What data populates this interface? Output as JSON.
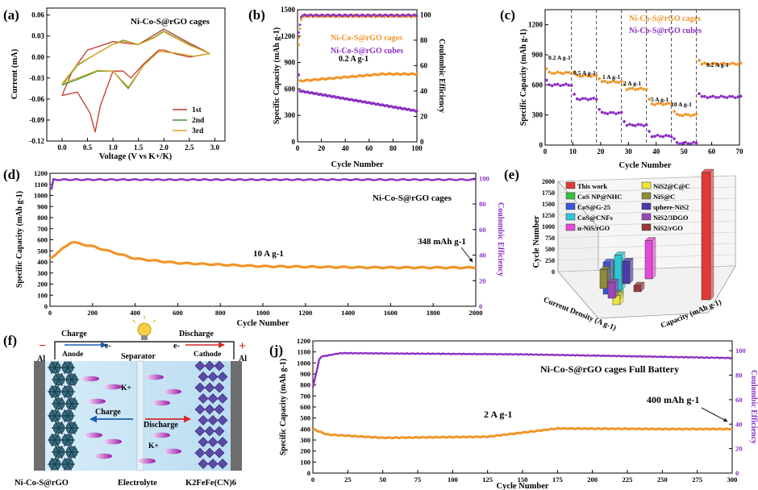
{
  "panels": {
    "a": {
      "label": "(a)",
      "xlabel": "Voltage (V vs K+/K)",
      "ylabel": "Current (mA)",
      "title": "Ni-Co-S@rGO cages"
    },
    "b": {
      "label": "(b)",
      "xlabel": "Cycle Number",
      "ylabel": "Specific Capacity (mAh g-1)",
      "y2label": "Coulombic Efficiency",
      "rate": "0.2 A g-1",
      "legend1": "Ni-Co-S@rGO cages",
      "legend2": "Ni-Co-S@rGO cubes"
    },
    "c": {
      "label": "(c)",
      "xlabel": "Cycle Number",
      "ylabel": "Specific Capacity (mAh g-1)",
      "legend1": "Ni-Co-S@rGO cages",
      "legend2": "Ni-Co-S@rGO cubes"
    },
    "d": {
      "label": "(d)",
      "xlabel": "Cycle Number",
      "ylabel": "Specific Capacity (mAh g-1)",
      "y2label": "Coulombic Efficiency",
      "title": "Ni-Co-S@rGO cages",
      "rate": "10 A g-1",
      "end_value": "348 mAh g-1"
    },
    "e": {
      "label": "(e)",
      "zlabel": "Cycle Number",
      "xlabel": "Current Density (A g-1)",
      "ylabel": "Capacity (mAh g-1)"
    },
    "f": {
      "label": "(f)"
    },
    "j": {
      "label": "(j)",
      "xlabel": "Cycle Number",
      "ylabel": "Specific Capacity (mAh g-1)",
      "y2label": "Coulombic Efficiency",
      "title": "Ni-Co-S@rGO cages Full Battery",
      "rate": "2 A g-1",
      "end_value": "400 mAh g-1"
    }
  },
  "chart_data": [
    {
      "id": "a",
      "type": "line",
      "title": "Ni-Co-S@rGO cages",
      "xlabel": "Voltage (V vs K+/K)",
      "ylabel": "Current (mA)",
      "xlim": [
        -0.3,
        3.2
      ],
      "ylim": [
        -0.12,
        0.07
      ],
      "xticks": [
        "0.0",
        "0.5",
        "1.0",
        "1.5",
        "2.0",
        "2.5",
        "3.0"
      ],
      "yticks": [
        "0.06",
        "0.03",
        "0.00",
        "-0.03",
        "-0.06",
        "-0.09",
        "-0.12"
      ],
      "series": [
        {
          "name": "1st",
          "color": "#c0392b",
          "x": [
            0.0,
            0.3,
            0.55,
            0.65,
            0.75,
            1.0,
            1.2,
            1.35,
            1.6,
            1.9,
            2.0,
            2.2,
            2.5,
            2.9,
            2.9,
            2.5,
            2.0,
            1.5,
            1.0,
            0.5,
            0.2,
            0.0
          ],
          "y": [
            -0.055,
            -0.05,
            -0.08,
            -0.107,
            -0.07,
            -0.02,
            -0.02,
            -0.03,
            -0.01,
            0.01,
            0.01,
            0.005,
            0.0,
            0.005,
            0.005,
            0.02,
            0.04,
            0.018,
            0.022,
            0.01,
            -0.02,
            -0.055
          ]
        },
        {
          "name": "2nd",
          "color": "#3a9a32",
          "x": [
            0.0,
            0.3,
            0.7,
            1.0,
            1.3,
            1.6,
            1.9,
            2.2,
            2.6,
            2.9,
            2.9,
            2.5,
            2.0,
            1.8,
            1.5,
            1.2,
            1.0,
            0.7,
            0.3,
            0.0
          ],
          "y": [
            -0.04,
            -0.032,
            -0.02,
            -0.02,
            -0.045,
            -0.012,
            0.008,
            0.006,
            0.001,
            0.005,
            0.005,
            0.018,
            0.037,
            0.028,
            0.018,
            0.024,
            0.018,
            0.006,
            -0.012,
            -0.04
          ]
        },
        {
          "name": "3rd",
          "color": "#e0a326",
          "x": [
            0.0,
            0.3,
            0.7,
            1.0,
            1.3,
            1.6,
            1.9,
            2.2,
            2.6,
            2.9,
            2.9,
            2.5,
            2.0,
            1.8,
            1.5,
            1.2,
            1.0,
            0.7,
            0.3,
            0.0
          ],
          "y": [
            -0.038,
            -0.03,
            -0.019,
            -0.02,
            -0.043,
            -0.012,
            0.008,
            0.006,
            0.001,
            0.005,
            0.005,
            0.017,
            0.036,
            0.027,
            0.018,
            0.023,
            0.018,
            0.006,
            -0.011,
            -0.038
          ]
        }
      ]
    },
    {
      "id": "b",
      "type": "scatter",
      "xlabel": "Cycle Number",
      "ylabel": "Specific Capacity (mAh g-1)",
      "y2label": "Coulombic Efficiency",
      "xlim": [
        0,
        100
      ],
      "ylim": [
        0,
        1500
      ],
      "y2lim": [
        0,
        104
      ],
      "xticks": [
        "0",
        "20",
        "40",
        "60",
        "80",
        "100"
      ],
      "yticks": [
        "0",
        "300",
        "600",
        "900",
        "1200",
        "1500"
      ],
      "y2ticks": [
        "0",
        "20",
        "40",
        "60",
        "80",
        "100"
      ],
      "annotation": "0.2 A g-1",
      "series": [
        {
          "name": "Ni-Co-S@rGO cages",
          "color": "#f0952a",
          "start": 690,
          "end": 770,
          "first": 1100
        },
        {
          "name": "Ni-Co-S@rGO cubes",
          "color": "#8a2fc4",
          "start": 580,
          "end": 350,
          "first": 760
        },
        {
          "name": "CE cages",
          "color": "#f0952a",
          "axis": "right",
          "value": 99
        },
        {
          "name": "CE cubes",
          "color": "#8a2fc4",
          "axis": "right",
          "value": 99.5
        }
      ]
    },
    {
      "id": "c",
      "type": "scatter",
      "xlabel": "Cycle Number",
      "ylabel": "Specific Capacity (mAh g-1)",
      "xlim": [
        0,
        70
      ],
      "ylim": [
        0,
        1350
      ],
      "xticks": [
        "0",
        "10",
        "20",
        "30",
        "40",
        "50",
        "60",
        "70"
      ],
      "yticks": [
        "0",
        "300",
        "600",
        "900",
        "1200"
      ],
      "rates": [
        "0.2 A g-1",
        "0.5 A g-1",
        "1 A g-1",
        "2 A g-1",
        "5 A g-1",
        "10 A g-1",
        "0.2 A g-1"
      ],
      "dividers": [
        9.5,
        18.5,
        27.5,
        36.5,
        45.5,
        54.5
      ],
      "series": [
        {
          "name": "Ni-Co-S@rGO cages",
          "color": "#f0952a",
          "segments": [
            [
              0,
              9,
              720
            ],
            [
              10,
              18,
              690
            ],
            [
              19,
              27,
              630
            ],
            [
              28,
              36,
              560
            ],
            [
              37,
              45,
              410
            ],
            [
              46,
              54,
              300
            ],
            [
              55,
              70,
              810
            ]
          ]
        },
        {
          "name": "Ni-Co-S@rGO cubes",
          "color": "#8a2fc4",
          "segments": [
            [
              0,
              9,
              600
            ],
            [
              10,
              18,
              460
            ],
            [
              19,
              27,
              320
            ],
            [
              28,
              36,
              200
            ],
            [
              37,
              45,
              90
            ],
            [
              46,
              54,
              20
            ],
            [
              55,
              70,
              480
            ]
          ]
        }
      ]
    },
    {
      "id": "d",
      "type": "scatter",
      "title": "Ni-Co-S@rGO cages",
      "xlabel": "Cycle Number",
      "ylabel": "Specific Capacity (mAh g-1)",
      "y2label": "Coulombic Efficiency",
      "xlim": [
        0,
        2000
      ],
      "ylim": [
        0,
        1200
      ],
      "y2lim": [
        0,
        104
      ],
      "xticks": [
        "0",
        "200",
        "400",
        "600",
        "800",
        "1000",
        "1200",
        "1400",
        "1600",
        "1800",
        "2000"
      ],
      "yticks": [
        "0",
        "100",
        "200",
        "300",
        "400",
        "500",
        "600",
        "700",
        "800",
        "900",
        "1000",
        "1100",
        "1200"
      ],
      "y2ticks": [
        "0",
        "20",
        "40",
        "60",
        "80",
        "100"
      ],
      "annotations": [
        "10 A g-1",
        "348 mAh g-1"
      ],
      "series": [
        {
          "name": "capacity",
          "color": "#f0952a",
          "points": [
            [
              0,
              430
            ],
            [
              100,
              580
            ],
            [
              200,
              540
            ],
            [
              400,
              430
            ],
            [
              600,
              390
            ],
            [
              1000,
              360
            ],
            [
              1500,
              350
            ],
            [
              2000,
              348
            ]
          ]
        },
        {
          "name": "CE",
          "color": "#8a2fc4",
          "axis": "right",
          "value": 99
        }
      ]
    },
    {
      "id": "e",
      "type": "bar",
      "title": "",
      "zlabel": "Cycle Number",
      "xlabel": "Current Density (A g-1)",
      "ylabel": "Capacity (mAh g-1)",
      "zticks": [
        "0",
        "250",
        "500",
        "750",
        "1000",
        "1250",
        "1500",
        "1750",
        "2000"
      ],
      "categories": [
        "This work",
        "CoS NP@NHC",
        "CoS@G-25",
        "CoS@CNFs",
        "α-NiS/rGO",
        "NiS2@C@C",
        "NiS@C",
        "sphere-NiS2",
        "NiS2/3DGO",
        "NiS2/rGO"
      ],
      "colors": [
        "#e03a36",
        "#38c23c",
        "#3a56d6",
        "#2fc6d6",
        "#e44ad8",
        "#ece63a",
        "#8e8a38",
        "#4c3aa8",
        "#9a47b6",
        "#963a3a"
      ],
      "values": [
        2000,
        600,
        500,
        550,
        600,
        150,
        300,
        350,
        250,
        100
      ]
    },
    {
      "id": "j",
      "type": "scatter",
      "title": "Ni-Co-S@rGO cages Full Battery",
      "xlabel": "Cycle Number",
      "ylabel": "Specific Capacity (mAh g-1)",
      "y2label": "Coulombic Efficiency",
      "xlim": [
        0,
        300
      ],
      "ylim": [
        0,
        1200
      ],
      "y2lim": [
        0,
        108
      ],
      "xticks": [
        "0",
        "25",
        "50",
        "75",
        "100",
        "125",
        "150",
        "175",
        "200",
        "225",
        "250",
        "275",
        "300"
      ],
      "yticks": [
        "0",
        "100",
        "200",
        "300",
        "400",
        "500",
        "600",
        "700",
        "800",
        "900",
        "1000",
        "1100",
        "1200"
      ],
      "y2ticks": [
        "0",
        "20",
        "40",
        "60",
        "80",
        "100"
      ],
      "annotations": [
        "2 A g-1",
        "400 mAh g-1"
      ],
      "series": [
        {
          "name": "capacity",
          "color": "#f0952a",
          "points": [
            [
              0,
              400
            ],
            [
              10,
              350
            ],
            [
              50,
              320
            ],
            [
              125,
              330
            ],
            [
              175,
              405
            ],
            [
              250,
              400
            ],
            [
              300,
              400
            ]
          ]
        },
        {
          "name": "CE",
          "color": "#8a2fc4",
          "axis": "right",
          "values": [
            [
              0,
              70
            ],
            [
              5,
              95
            ],
            [
              20,
              98
            ],
            [
              150,
              97
            ],
            [
              300,
              94
            ]
          ]
        }
      ]
    }
  ],
  "schematic": {
    "charge_top": "Charge",
    "discharge_top": "Discharge",
    "electron_left": "e-",
    "electron_right": "e-",
    "al_left": "Al",
    "al_right": "Al",
    "minus": "−",
    "plus": "+",
    "anode": "Anode",
    "separator": "Separator",
    "cathode": "Cathode",
    "k_ion_1": "K+",
    "k_ion_2": "K+",
    "charge_inner": "Charge",
    "discharge_inner": "Discharge",
    "bottom_left": "Ni-Co-S@rGO",
    "bottom_mid": "Electrolyte",
    "bottom_right": "K2FeFe(CN)6"
  },
  "colors": {
    "orange": "#f0952a",
    "purple": "#8a2fc4",
    "red": "#c0392b",
    "green": "#3a9a32",
    "gold": "#e0a326"
  }
}
